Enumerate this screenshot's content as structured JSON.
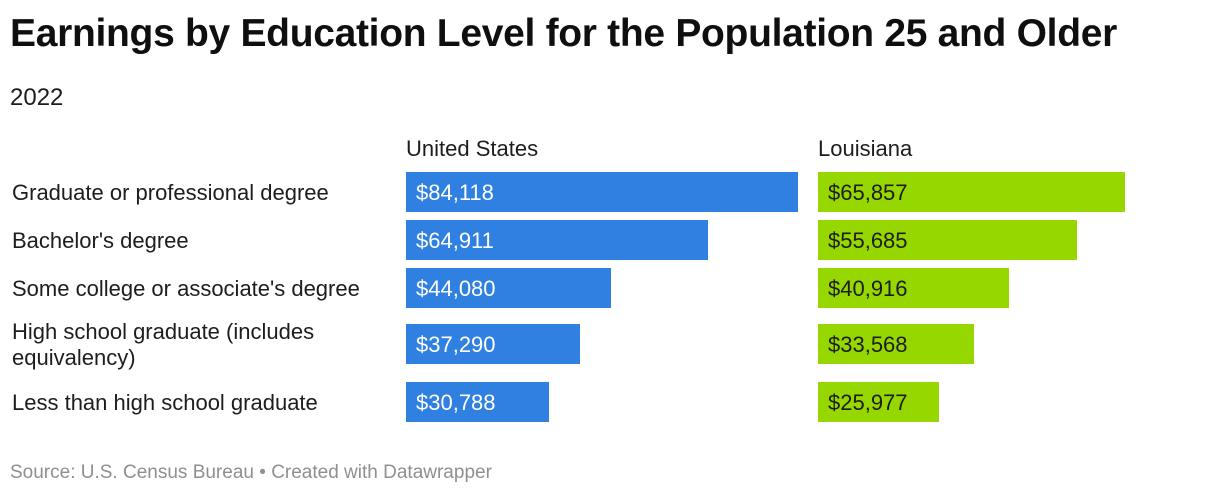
{
  "title": "Earnings by Education Level for the Population 25 and Older",
  "subtitle": "2022",
  "footer": {
    "source": "Source: U.S. Census Bureau",
    "separator": "•",
    "credit": "Created with Datawrapper"
  },
  "colors": {
    "united_states": "#2f80e0",
    "louisiana": "#97d700",
    "label_on_blue": "#ffffff",
    "label_on_green": "#1d1d1d"
  },
  "chart_data": {
    "type": "bar",
    "orientation": "horizontal",
    "layout": "small-multiples",
    "categories": [
      [
        "Graduate or professional degree"
      ],
      [
        "Bachelor's degree"
      ],
      [
        "Some college or associate's degree"
      ],
      [
        "High school graduate (includes",
        "equivalency)"
      ],
      [
        "Less than high school graduate"
      ]
    ],
    "series": [
      {
        "name": "United States",
        "values": [
          84118,
          64911,
          44080,
          37290,
          30788
        ],
        "labels": [
          "$84,118",
          "$64,911",
          "$44,080",
          "$37,290",
          "$30,788"
        ]
      },
      {
        "name": "Louisiana",
        "values": [
          65857,
          55685,
          40916,
          33568,
          25977
        ],
        "labels": [
          "$65,857",
          "$55,685",
          "$40,916",
          "$33,568",
          "$25,977"
        ]
      }
    ],
    "xlim": [
      0,
      84118
    ],
    "grid": false,
    "legend": "none"
  }
}
